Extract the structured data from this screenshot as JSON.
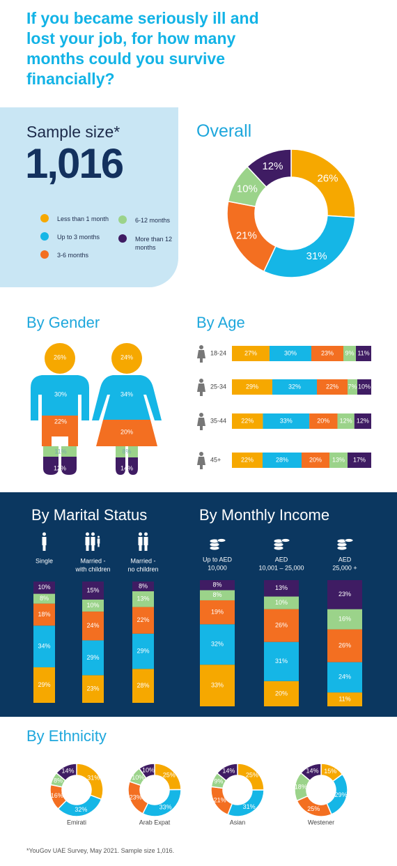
{
  "title": "If you became seriously ill and lost your job, for how many months could you survive financially?",
  "sample": {
    "label": "Sample size*",
    "value": "1,016"
  },
  "legend": [
    {
      "label": "Less than 1 month",
      "color": "#f6a800"
    },
    {
      "label": "Up to 3 months",
      "color": "#15b6e6"
    },
    {
      "label": "3-6 months",
      "color": "#f36f21"
    },
    {
      "label": "6-12 months",
      "color": "#9bd38a"
    },
    {
      "label": "More than 12 months",
      "color": "#3f1c63"
    }
  ],
  "sections": {
    "overall": "Overall",
    "gender": "By Gender",
    "age": "By Age",
    "marital": "By Marital Status",
    "income": "By Monthly Income",
    "ethnicity": "By Ethnicity"
  },
  "footnote": "*YouGov UAE Survey, May 2021. Sample size 1,016.",
  "chart_data": [
    {
      "id": "overall",
      "type": "pie",
      "title": "Overall",
      "categories": [
        "Less than 1 month",
        "Up to 3 months",
        "3-6 months",
        "6-12 months",
        "More than 12 months"
      ],
      "values": [
        26,
        31,
        21,
        10,
        12
      ],
      "labels": [
        "26%",
        "31%",
        "21%",
        "10%",
        "12%"
      ]
    },
    {
      "id": "gender",
      "type": "bar",
      "title": "By Gender",
      "categories": [
        "Male",
        "Female"
      ],
      "series": [
        {
          "name": "Less than 1 month",
          "values": [
            26,
            24
          ],
          "labels": [
            "26%",
            "24%"
          ]
        },
        {
          "name": "Up to 3 months",
          "values": [
            30,
            34
          ],
          "labels": [
            "30%",
            "34%"
          ]
        },
        {
          "name": "3-6 months",
          "values": [
            22,
            20
          ],
          "labels": [
            "22%",
            "20%"
          ]
        },
        {
          "name": "6-12 months",
          "values": [
            11,
            8
          ],
          "labels": [
            "11%",
            "8%"
          ]
        },
        {
          "name": "More than 12 months",
          "values": [
            12,
            14
          ],
          "labels": [
            "12%",
            "14%"
          ]
        }
      ]
    },
    {
      "id": "age",
      "type": "bar",
      "title": "By Age",
      "categories": [
        "18-24",
        "25-34",
        "35-44",
        "45+"
      ],
      "series": [
        {
          "name": "Less than 1 month",
          "values": [
            27,
            29,
            22,
            22
          ],
          "labels": [
            "27%",
            "29%",
            "22%",
            "22%"
          ]
        },
        {
          "name": "Up to 3 months",
          "values": [
            30,
            32,
            33,
            28
          ],
          "labels": [
            "30%",
            "32%",
            "33%",
            "28%"
          ]
        },
        {
          "name": "3-6 months",
          "values": [
            23,
            22,
            20,
            20
          ],
          "labels": [
            "23%",
            "22%",
            "20%",
            "20%"
          ]
        },
        {
          "name": "6-12 months",
          "values": [
            9,
            7,
            12,
            13
          ],
          "labels": [
            "9%",
            "7%",
            "12%",
            "13%"
          ]
        },
        {
          "name": "More than 12 months",
          "values": [
            11,
            10,
            12,
            17
          ],
          "labels": [
            "11%",
            "10%",
            "12%",
            "17%"
          ]
        }
      ]
    },
    {
      "id": "marital",
      "type": "bar",
      "title": "By Marital Status",
      "categories": [
        "Single",
        "Married - with children",
        "Married - no children"
      ],
      "category_lines": [
        [
          "Single"
        ],
        [
          "Married -",
          "with children"
        ],
        [
          "Married -",
          "no children"
        ]
      ],
      "series": [
        {
          "name": "Less than 1 month",
          "values": [
            29,
            23,
            28
          ],
          "labels": [
            "29%",
            "23%",
            "28%"
          ]
        },
        {
          "name": "Up to 3 months",
          "values": [
            34,
            29,
            29
          ],
          "labels": [
            "34%",
            "29%",
            "29%"
          ]
        },
        {
          "name": "3-6 months",
          "values": [
            18,
            24,
            22
          ],
          "labels": [
            "18%",
            "24%",
            "22%"
          ]
        },
        {
          "name": "6-12 months",
          "values": [
            8,
            10,
            13
          ],
          "labels": [
            "8%",
            "10%",
            "13%"
          ]
        },
        {
          "name": "More than 12 months",
          "values": [
            10,
            15,
            8
          ],
          "labels": [
            "10%",
            "15%",
            "8%"
          ]
        }
      ]
    },
    {
      "id": "income",
      "type": "bar",
      "title": "By Monthly Income",
      "categories": [
        "Up to AED 10,000",
        "AED 10,001 – 25,000",
        "AED 25,000 +"
      ],
      "category_lines": [
        [
          "Up to AED",
          "10,000"
        ],
        [
          "AED",
          "10,001 – 25,000"
        ],
        [
          "AED",
          "25,000 +"
        ]
      ],
      "series": [
        {
          "name": "Less than 1 month",
          "values": [
            33,
            20,
            11
          ],
          "labels": [
            "33%",
            "20%",
            "11%"
          ]
        },
        {
          "name": "Up to 3 months",
          "values": [
            32,
            31,
            24
          ],
          "labels": [
            "32%",
            "31%",
            "24%"
          ]
        },
        {
          "name": "3-6 months",
          "values": [
            19,
            26,
            26
          ],
          "labels": [
            "19%",
            "26%",
            "26%"
          ]
        },
        {
          "name": "6-12 months",
          "values": [
            8,
            10,
            16
          ],
          "labels": [
            "8%",
            "10%",
            "16%"
          ]
        },
        {
          "name": "More than 12 months",
          "values": [
            8,
            13,
            23
          ],
          "labels": [
            "8%",
            "13%",
            "23%"
          ]
        }
      ]
    },
    {
      "id": "ethnicity",
      "type": "pie",
      "title": "By Ethnicity",
      "categories": [
        "Emirati",
        "Arab Expat",
        "Asian",
        "Westener"
      ],
      "series": [
        {
          "name": "Less than 1 month",
          "values": [
            31,
            25,
            25,
            15
          ],
          "labels": [
            "31%",
            "25%",
            "25%",
            "15%"
          ]
        },
        {
          "name": "Up to 3 months",
          "values": [
            32,
            33,
            31,
            29
          ],
          "labels": [
            "32%",
            "33%",
            "31%",
            "29%"
          ]
        },
        {
          "name": "3-6 months",
          "values": [
            16,
            23,
            21,
            25
          ],
          "labels": [
            "16%",
            "23%",
            "21%",
            "25%"
          ]
        },
        {
          "name": "6-12 months",
          "values": [
            8,
            10,
            9,
            18
          ],
          "labels": [
            "8%",
            "10%",
            "9%",
            "18%"
          ]
        },
        {
          "name": "More than 12 months",
          "values": [
            14,
            10,
            14,
            14
          ],
          "labels": [
            "14%",
            "10%",
            "14%",
            "14%"
          ]
        }
      ]
    }
  ]
}
